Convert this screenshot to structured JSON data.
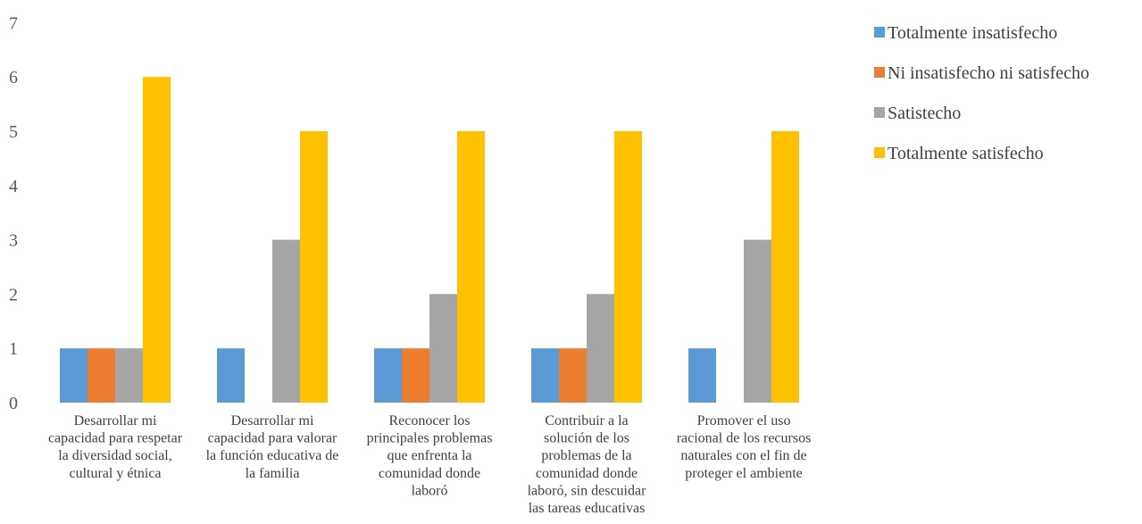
{
  "chart_data": {
    "type": "bar",
    "title": "",
    "xlabel": "",
    "ylabel": "",
    "ylim": [
      0,
      7
    ],
    "yticks": [
      0,
      1,
      2,
      3,
      4,
      5,
      6,
      7
    ],
    "grid": false,
    "legend_position": "right",
    "categories": [
      [
        "Desarrollar mi",
        "capacidad para respetar",
        "la diversidad social,",
        "cultural y étnica"
      ],
      [
        "Desarrollar mi",
        "capacidad para valorar",
        "la función educativa de",
        "la familia"
      ],
      [
        "Reconocer los",
        "principales problemas",
        "que enfrenta la",
        "comunidad donde",
        "laboró"
      ],
      [
        "Contribuir a la",
        "solución de los",
        "problemas de la",
        "comunidad donde",
        "laboró, sin descuidar",
        "las tareas educativas"
      ],
      [
        "Promover el uso",
        "racional de los recursos",
        "naturales con el fin de",
        "proteger el ambiente"
      ]
    ],
    "series": [
      {
        "name": "Totalmente insatisfecho",
        "color": "#5B9BD5",
        "values": [
          1,
          1,
          1,
          1,
          1
        ]
      },
      {
        "name": "Ni insatisfecho ni satisfecho",
        "color": "#ED7D31",
        "values": [
          1,
          0,
          1,
          1,
          0
        ]
      },
      {
        "name": "Satistecho",
        "color": "#A5A5A5",
        "values": [
          1,
          3,
          2,
          2,
          3
        ]
      },
      {
        "name": "Totalmente satisfecho",
        "color": "#FFC000",
        "values": [
          6,
          5,
          5,
          5,
          5
        ]
      }
    ]
  }
}
